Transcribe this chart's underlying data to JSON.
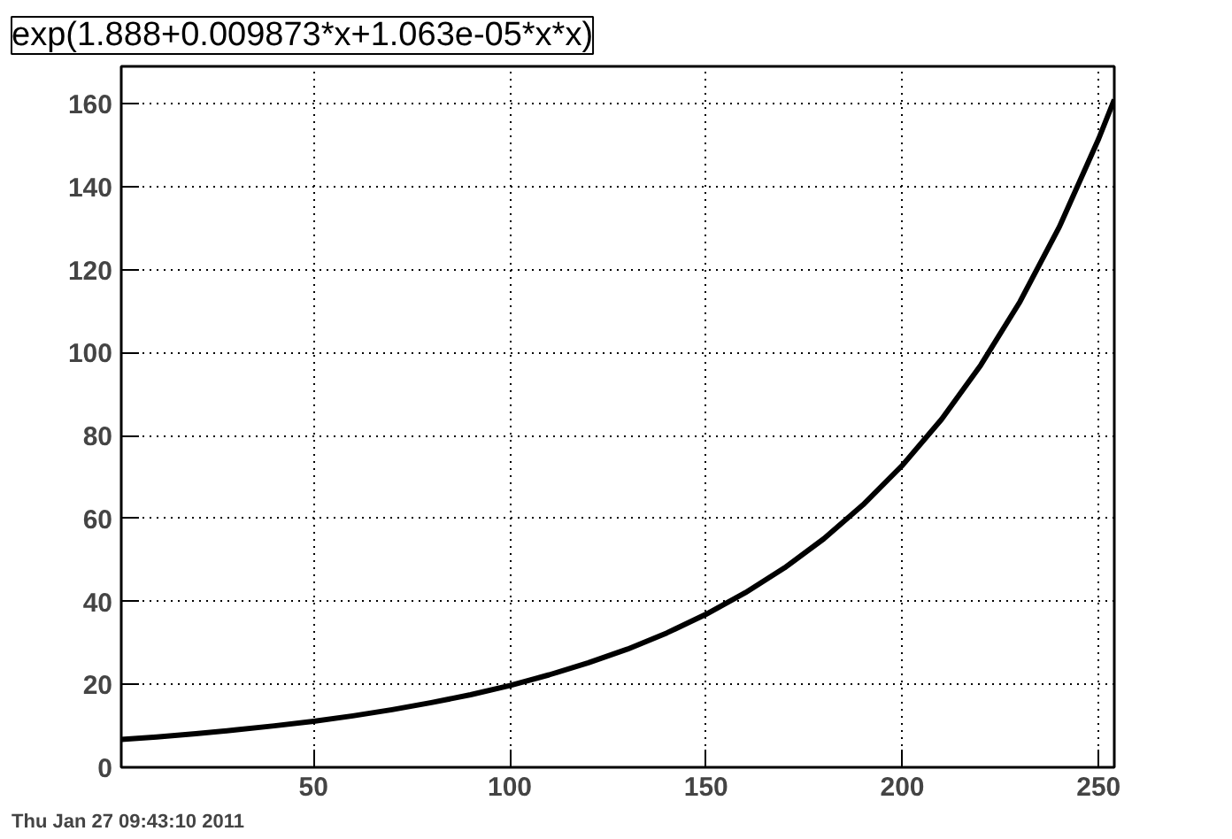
{
  "chart_data": {
    "type": "line",
    "title": "exp(1.888+0.009873*x+1.063e-05*x*x)",
    "annotations": [
      "Thu Jan 27 09:43:10 2011"
    ],
    "x": [
      1,
      10,
      20,
      30,
      40,
      50,
      60,
      70,
      80,
      90,
      100,
      110,
      120,
      130,
      140,
      150,
      160,
      170,
      180,
      190,
      200,
      210,
      220,
      230,
      240,
      250,
      254
    ],
    "series": [
      {
        "color": "#000000",
        "values": [
          6.7,
          7.3,
          8.1,
          9.0,
          10.0,
          11.1,
          12.4,
          13.9,
          15.6,
          17.5,
          19.7,
          22.3,
          25.2,
          28.5,
          32.4,
          36.9,
          42.1,
          48.1,
          55.1,
          63.3,
          72.8,
          83.9,
          97.0,
          112.3,
          130.3,
          151.5,
          161.0
        ]
      }
    ],
    "xlim": [
      1,
      254
    ],
    "ylim": [
      0,
      169
    ],
    "xticks": [
      50,
      100,
      150,
      200,
      250
    ],
    "yticks": [
      0,
      20,
      40,
      60,
      80,
      100,
      120,
      140,
      160
    ],
    "grid": true,
    "marker": "none",
    "line_style": "solid"
  }
}
